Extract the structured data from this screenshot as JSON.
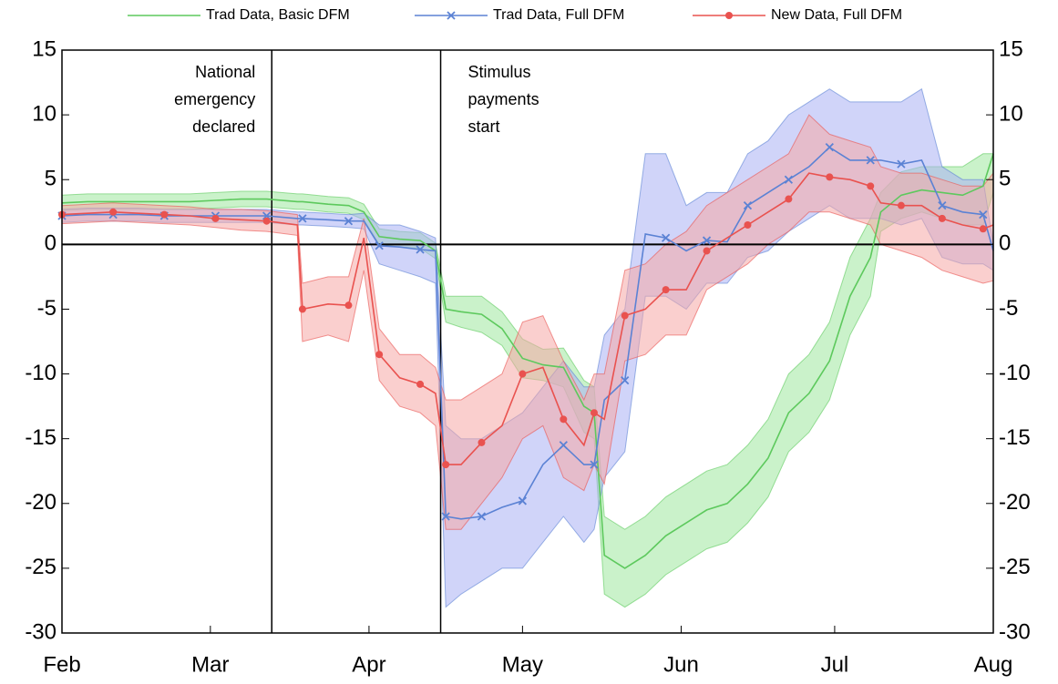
{
  "chart_data": {
    "type": "line",
    "x": [
      0,
      5,
      10,
      15,
      20,
      25,
      30,
      35,
      40,
      46,
      47,
      52,
      56,
      59,
      62,
      66,
      70,
      73,
      75,
      78,
      82,
      86,
      90,
      94,
      98,
      102,
      104,
      106,
      110,
      114,
      118,
      122,
      126,
      130,
      134,
      138,
      142,
      146,
      150,
      154,
      158,
      160,
      164,
      168,
      172,
      176,
      180,
      182
    ],
    "xlim": [
      0,
      182
    ],
    "xticks": [
      {
        "value": 0,
        "label": "Feb"
      },
      {
        "value": 29,
        "label": "Mar"
      },
      {
        "value": 60,
        "label": "Apr"
      },
      {
        "value": 90,
        "label": "May"
      },
      {
        "value": 121,
        "label": "Jun"
      },
      {
        "value": 151,
        "label": "Jul"
      },
      {
        "value": 182,
        "label": "Aug"
      }
    ],
    "ylim": [
      -30,
      15
    ],
    "yticks": [
      -30,
      -25,
      -20,
      -15,
      -10,
      -5,
      0,
      5,
      10,
      15
    ],
    "y2lim": [
      -30,
      15
    ],
    "y2ticks": [
      -30,
      -25,
      -20,
      -15,
      -10,
      -5,
      0,
      5,
      10,
      15
    ],
    "annotations": [
      {
        "x": 41,
        "text": [
          "National",
          "emergency",
          "declared"
        ]
      },
      {
        "x": 74,
        "text": [
          "Stimulus",
          "payments",
          "start"
        ]
      }
    ],
    "series": [
      {
        "name": "Trad Data, Basic DFM",
        "color": "#5dc95d",
        "band_color": "#9ee89e",
        "marker": "none",
        "values": [
          3.2,
          3.3,
          3.3,
          3.3,
          3.3,
          3.3,
          3.4,
          3.5,
          3.5,
          3.3,
          3.3,
          3.1,
          3.0,
          2.5,
          0.6,
          0.4,
          0.3,
          -0.5,
          -5,
          -5.2,
          -5.4,
          -6.5,
          -8.8,
          -9.3,
          -9.5,
          -12.5,
          -13,
          -24,
          -25,
          -24,
          -22.5,
          -21.5,
          -20.5,
          -20,
          -18.5,
          -16.5,
          -13,
          -11.5,
          -9,
          -4,
          -1,
          2.5,
          3.8,
          4.2,
          4,
          3.8,
          4.5,
          7
        ],
        "lower": [
          2.6,
          2.7,
          2.7,
          2.7,
          2.7,
          2.7,
          2.8,
          2.9,
          2.9,
          2.7,
          2.7,
          2.5,
          2.4,
          1.9,
          0,
          -0.2,
          -0.3,
          -1.1,
          -6,
          -6.4,
          -6.8,
          -7.8,
          -10.3,
          -10.5,
          -11,
          -14.5,
          -15,
          -27,
          -28,
          -27,
          -25.5,
          -24.5,
          -23.5,
          -23,
          -21.5,
          -19.5,
          -16,
          -14.5,
          -12,
          -7,
          -4,
          1,
          2,
          2.5,
          2,
          1.5,
          1.5,
          4
        ],
        "upper": [
          3.8,
          3.9,
          3.9,
          3.9,
          3.9,
          3.9,
          4.0,
          4.1,
          4.1,
          3.9,
          3.9,
          3.7,
          3.6,
          3.1,
          1.2,
          1.0,
          0.9,
          0.1,
          -4,
          -4,
          -4,
          -5.2,
          -7.3,
          -8.1,
          -8,
          -10.5,
          -11,
          -21,
          -22,
          -21,
          -19.5,
          -18.5,
          -17.5,
          -17,
          -15.5,
          -13.5,
          -10,
          -8.5,
          -6,
          -1,
          2,
          4,
          5.6,
          6,
          6,
          6,
          7,
          7
        ]
      },
      {
        "name": "Trad Data, Full DFM",
        "color": "#5b82d4",
        "band_color": "#aab0f4",
        "marker": "x",
        "values": [
          2.2,
          2.3,
          2.3,
          2.3,
          2.2,
          2.2,
          2.2,
          2.2,
          2.2,
          2.0,
          2.0,
          1.9,
          1.8,
          1.8,
          -0.1,
          -0.2,
          -0.4,
          -0.5,
          -21,
          -21.2,
          -21,
          -20.3,
          -19.8,
          -17,
          -15.5,
          -17,
          -17,
          -12,
          -10.5,
          0.8,
          0.5,
          -0.5,
          0.3,
          0.2,
          3,
          4,
          5,
          6,
          7.5,
          6.5,
          6.5,
          6.5,
          6.2,
          6.5,
          3,
          2.5,
          2.3,
          -0.5
        ],
        "lower": [
          1.7,
          1.8,
          1.8,
          1.8,
          1.7,
          1.7,
          1.7,
          1.7,
          1.7,
          1.5,
          1.5,
          1.4,
          1.3,
          1.2,
          -1.5,
          -2,
          -2.5,
          -3,
          -28,
          -27,
          -26,
          -25,
          -25,
          -23,
          -21,
          -23,
          -22,
          -18,
          -16,
          -4,
          -4,
          -5,
          -3,
          -3,
          -1,
          -0.5,
          1,
          2,
          3,
          2,
          2,
          2,
          1.5,
          2,
          -1,
          -1.5,
          -1.5,
          -2
        ],
        "upper": [
          2.7,
          2.8,
          2.8,
          2.8,
          2.7,
          2.7,
          2.7,
          2.7,
          2.7,
          2.5,
          2.5,
          2.4,
          2.3,
          2.4,
          1.5,
          1.5,
          1,
          0.5,
          -14,
          -15,
          -15,
          -14,
          -13,
          -11,
          -9,
          -11,
          -11,
          -7,
          -5,
          7,
          7,
          3,
          4,
          4,
          7,
          8,
          10,
          11,
          12,
          11,
          11,
          11,
          11,
          12,
          6,
          5,
          5,
          0
        ]
      },
      {
        "name": "New Data, Full DFM",
        "color": "#e9524f",
        "band_color": "#f5a8a6",
        "marker": "dot",
        "values": [
          2.3,
          2.4,
          2.5,
          2.4,
          2.3,
          2.2,
          2.0,
          1.9,
          1.8,
          1.5,
          -5,
          -4.6,
          -4.7,
          0.5,
          -8.5,
          -10.3,
          -10.8,
          -11.5,
          -17,
          -17,
          -15.3,
          -14,
          -10,
          -9.5,
          -13.5,
          -15.5,
          -13,
          -13.5,
          -5.5,
          -5,
          -3.5,
          -3.5,
          -0.5,
          0.5,
          1.5,
          2.5,
          3.5,
          5.5,
          5.2,
          5,
          4.5,
          3.2,
          3,
          3,
          2,
          1.5,
          1.2,
          1.5
        ],
        "lower": [
          1.6,
          1.7,
          1.8,
          1.7,
          1.6,
          1.5,
          1.3,
          1.1,
          1.0,
          0.7,
          -7.5,
          -7,
          -7.5,
          -2,
          -10.5,
          -12.5,
          -13,
          -14,
          -22,
          -22,
          -20,
          -18,
          -15,
          -14,
          -18,
          -19,
          -17,
          -18.5,
          -9,
          -8.5,
          -7,
          -7,
          -3.5,
          -2.5,
          -1.5,
          0,
          1,
          2.5,
          2.5,
          2,
          1.5,
          0,
          -0.5,
          -1,
          -2,
          -2.5,
          -3,
          -2.8
        ],
        "upper": [
          3.0,
          3.1,
          3.2,
          3.1,
          3.0,
          2.9,
          2.7,
          2.7,
          2.6,
          2.3,
          -3,
          -2.5,
          -2.5,
          2,
          -6.5,
          -8.5,
          -8.5,
          -9.5,
          -12,
          -12,
          -11,
          -10,
          -6,
          -5.5,
          -9,
          -12,
          -10,
          -10,
          -2,
          -1.5,
          0,
          1,
          3,
          4,
          5,
          6,
          7,
          10,
          8.5,
          8,
          7.5,
          6,
          5.5,
          5.5,
          5,
          4.5,
          4.5,
          5.5
        ]
      }
    ]
  }
}
